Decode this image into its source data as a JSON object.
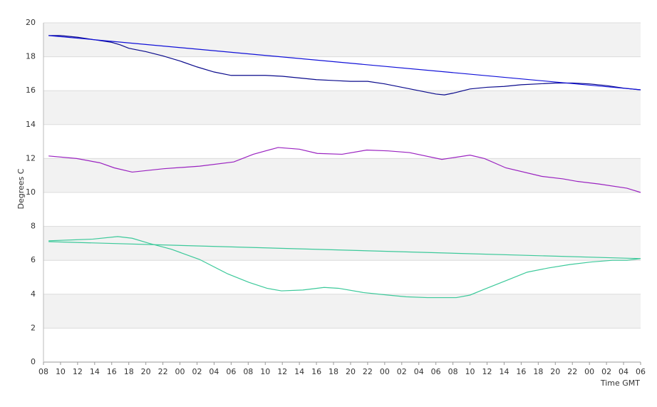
{
  "chart_data": {
    "type": "line",
    "y_label": "Degrees C",
    "x_label": "Time GMT",
    "ylim": [
      0,
      20
    ],
    "yticks": [
      0,
      2,
      4,
      6,
      8,
      10,
      12,
      14,
      16,
      18,
      20
    ],
    "xlim": [
      0,
      70
    ],
    "xticks": [
      {
        "value": 0,
        "label": "08"
      },
      {
        "value": 2,
        "label": "10"
      },
      {
        "value": 4,
        "label": "12"
      },
      {
        "value": 6,
        "label": "14"
      },
      {
        "value": 8,
        "label": "16"
      },
      {
        "value": 10,
        "label": "18"
      },
      {
        "value": 12,
        "label": "20"
      },
      {
        "value": 14,
        "label": "22"
      },
      {
        "value": 16,
        "label": "00"
      },
      {
        "value": 18,
        "label": "02"
      },
      {
        "value": 20,
        "label": "04"
      },
      {
        "value": 22,
        "label": "06"
      },
      {
        "value": 24,
        "label": "08"
      },
      {
        "value": 26,
        "label": "10"
      },
      {
        "value": 28,
        "label": "12"
      },
      {
        "value": 30,
        "label": "14"
      },
      {
        "value": 32,
        "label": "16"
      },
      {
        "value": 34,
        "label": "18"
      },
      {
        "value": 36,
        "label": "20"
      },
      {
        "value": 38,
        "label": "22"
      },
      {
        "value": 40,
        "label": "00"
      },
      {
        "value": 42,
        "label": "02"
      },
      {
        "value": 44,
        "label": "04"
      },
      {
        "value": 46,
        "label": "06"
      },
      {
        "value": 48,
        "label": "08"
      },
      {
        "value": 50,
        "label": "10"
      },
      {
        "value": 52,
        "label": "12"
      },
      {
        "value": 54,
        "label": "14"
      },
      {
        "value": 56,
        "label": "16"
      },
      {
        "value": 58,
        "label": "18"
      },
      {
        "value": 60,
        "label": "20"
      },
      {
        "value": 62,
        "label": "22"
      },
      {
        "value": 64,
        "label": "00"
      },
      {
        "value": 66,
        "label": "02"
      },
      {
        "value": 68,
        "label": "04"
      },
      {
        "value": 70,
        "label": "06"
      }
    ],
    "grid": true,
    "band_color": "#f2f2f2",
    "series": [
      {
        "color": "#0a0a8c",
        "x": [
          0.6,
          2,
          4,
          6,
          8,
          9,
          10,
          12,
          14,
          16,
          18,
          20,
          22,
          24,
          26,
          28,
          30,
          32,
          34,
          36,
          38,
          40,
          42,
          44,
          46,
          47,
          48,
          50,
          52,
          54,
          56,
          58,
          60,
          62,
          64,
          66,
          68,
          70
        ],
        "values": [
          19.25,
          19.25,
          19.15,
          19.0,
          18.85,
          18.7,
          18.5,
          18.3,
          18.05,
          17.75,
          17.4,
          17.1,
          16.9,
          16.9,
          16.9,
          16.85,
          16.75,
          16.65,
          16.6,
          16.55,
          16.55,
          16.4,
          16.2,
          16.0,
          15.8,
          15.75,
          15.85,
          16.1,
          16.2,
          16.25,
          16.35,
          16.4,
          16.45,
          16.45,
          16.4,
          16.3,
          16.15,
          16.05
        ]
      },
      {
        "color": "#1010d8",
        "x": [
          0.6,
          70
        ],
        "values": [
          19.25,
          16.05
        ]
      },
      {
        "color": "#9a22c0",
        "x": [
          0.6,
          3.9,
          6.6,
          8.3,
          10.4,
          14.1,
          18.3,
          22.3,
          24.6,
          27.5,
          30.0,
          32.1,
          35.0,
          37.9,
          40.4,
          42.9,
          46.7,
          50.0,
          51.7,
          54.2,
          58.4,
          60.9,
          62.6,
          65.1,
          68.4,
          70
        ],
        "values": [
          12.15,
          12.0,
          11.75,
          11.45,
          11.2,
          11.4,
          11.55,
          11.8,
          12.25,
          12.65,
          12.55,
          12.3,
          12.25,
          12.5,
          12.45,
          12.35,
          11.95,
          12.2,
          12.0,
          11.45,
          10.95,
          10.8,
          10.65,
          10.5,
          10.25,
          10.0
        ]
      },
      {
        "color": "#3cc99a",
        "x": [
          0.6,
          3.3,
          5.8,
          8.7,
          10.4,
          12.4,
          15.0,
          18.3,
          21.6,
          24.1,
          26.2,
          27.9,
          30.4,
          32.9,
          34.6,
          37.5,
          40.4,
          42.5,
          45.0,
          48.4,
          50.0,
          51.7,
          54.2,
          56.7,
          59.2,
          61.7,
          64.2,
          66.7,
          68.4,
          70
        ],
        "values": [
          7.15,
          7.2,
          7.25,
          7.4,
          7.3,
          7.0,
          6.65,
          6.05,
          5.2,
          4.7,
          4.35,
          4.2,
          4.25,
          4.4,
          4.35,
          4.1,
          3.95,
          3.85,
          3.8,
          3.8,
          3.95,
          4.3,
          4.8,
          5.3,
          5.55,
          5.75,
          5.9,
          6.0,
          6.0,
          6.1
        ]
      },
      {
        "color": "#3cc99a",
        "x": [
          0.6,
          70
        ],
        "values": [
          7.1,
          6.1
        ]
      }
    ]
  }
}
